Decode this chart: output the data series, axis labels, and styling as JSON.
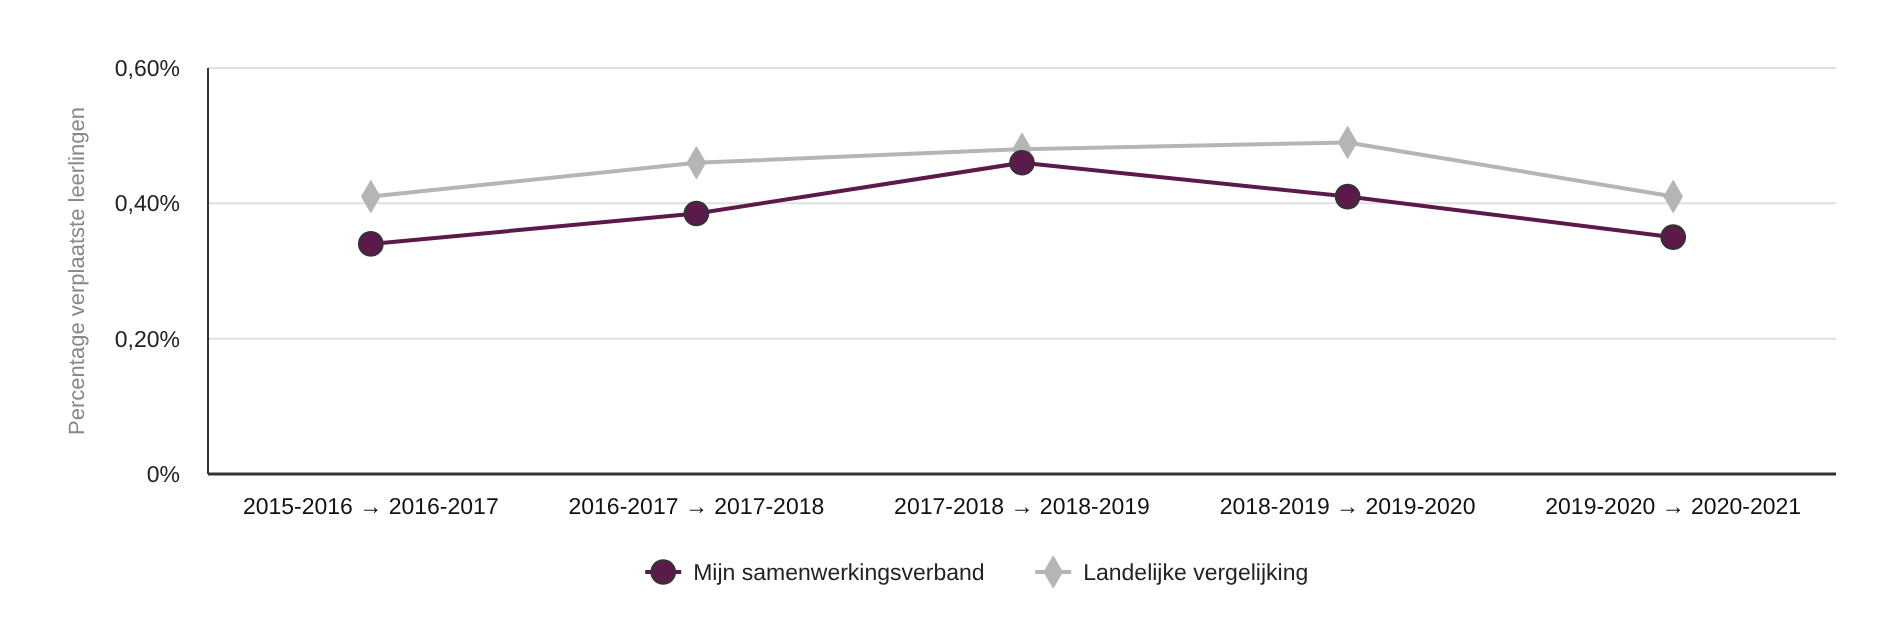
{
  "chart_data": {
    "type": "line",
    "ylabel": "Percentage verplaatste leerlingen",
    "categories": [
      "2015-2016 → 2016-2017",
      "2016-2017 → 2017-2018",
      "2017-2018 → 2018-2019",
      "2018-2019 → 2019-2020",
      "2019-2020 → 2020-2021"
    ],
    "series": [
      {
        "name": "Mijn samenwerkingsverband",
        "color": "#5c1a4a",
        "marker": "circle",
        "values": [
          0.34,
          0.385,
          0.46,
          0.41,
          0.35
        ]
      },
      {
        "name": "Landelijke vergelijking",
        "color": "#b5b5b5",
        "marker": "diamond",
        "values": [
          0.41,
          0.46,
          0.48,
          0.49,
          0.41
        ]
      }
    ],
    "ylim": [
      0,
      0.6
    ],
    "yticks": [
      {
        "value": 0,
        "label": "0%"
      },
      {
        "value": 0.2,
        "label": "0,20%"
      },
      {
        "value": 0.4,
        "label": "0,40%"
      },
      {
        "value": 0.6,
        "label": "0,60%"
      }
    ],
    "grid": "y",
    "legend": "bottom"
  }
}
